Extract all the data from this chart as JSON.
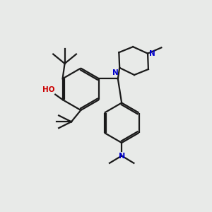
{
  "bg_color": "#e8eae8",
  "bond_color": "#1a1a1a",
  "n_color": "#0000cc",
  "o_color": "#cc0000",
  "fig_width": 3.0,
  "fig_height": 3.0,
  "dpi": 100,
  "xlim": [
    0,
    10
  ],
  "ylim": [
    0,
    10
  ]
}
